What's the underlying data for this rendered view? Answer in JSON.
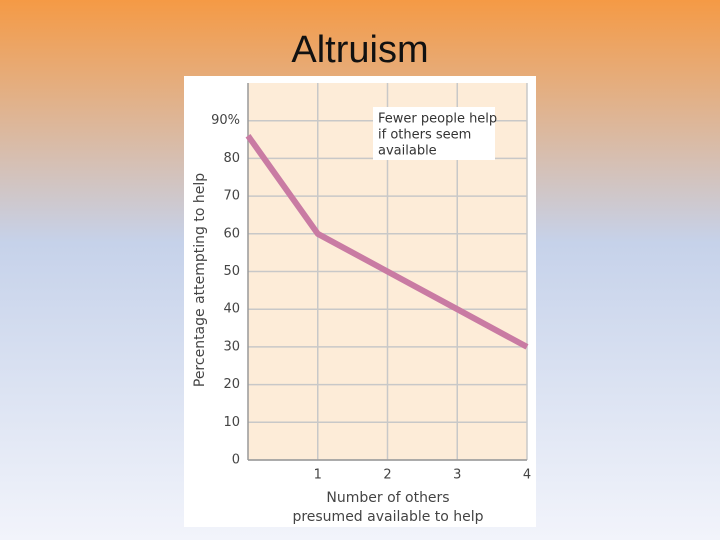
{
  "chart_data": {
    "type": "line",
    "title": "Altruism",
    "annotation": [
      "Fewer people help",
      "if others seem",
      "available"
    ],
    "y_label": "Percentage attempting to help",
    "x_label": [
      "Number of others",
      "presumed available to help"
    ],
    "x": [
      0,
      1,
      2,
      3,
      4
    ],
    "values": [
      86,
      60,
      50,
      40,
      30
    ],
    "color": "#c97ba3",
    "xlim": [
      0,
      4
    ],
    "xticks": [
      1,
      2,
      3,
      4
    ],
    "ylim": [
      0,
      100
    ],
    "yticks": [
      0,
      10,
      20,
      30,
      40,
      50,
      60,
      70,
      80,
      {
        "value": 90,
        "label": "90%"
      }
    ],
    "grid": true
  }
}
